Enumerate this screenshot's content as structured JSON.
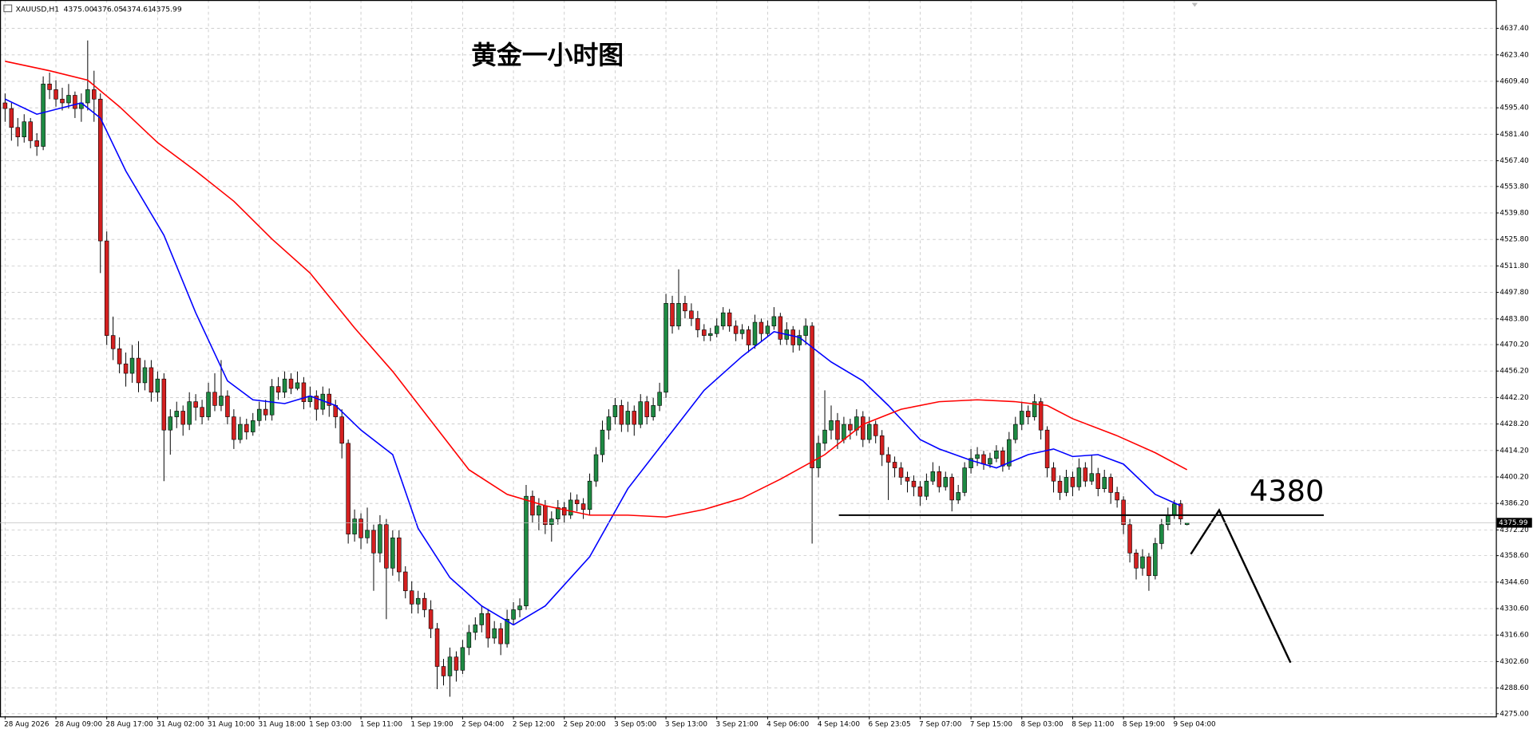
{
  "chart_data": {
    "type": "candlestick",
    "title": "黄金一小时图",
    "header": {
      "symbol": "XAUUSD,H1",
      "quote": [
        "4375.00",
        "4376.05",
        "4374.61",
        "4375.99"
      ]
    },
    "bull_color": "#1e8a43",
    "bear_color": "#d42020",
    "grid": true,
    "xlim": [
      -0.8,
      234.6
    ],
    "ylim": [
      4273.6,
      4652.4
    ],
    "xticks": [
      {
        "value": 0,
        "label": "28 Aug 2026"
      },
      {
        "value": 8,
        "label": "28 Aug 09:00"
      },
      {
        "value": 16,
        "label": "28 Aug 17:00"
      },
      {
        "value": 24,
        "label": "31 Aug 02:00"
      },
      {
        "value": 32,
        "label": "31 Aug 10:00"
      },
      {
        "value": 40,
        "label": "31 Aug 18:00"
      },
      {
        "value": 48,
        "label": "1 Sep 03:00"
      },
      {
        "value": 56,
        "label": "1 Sep 11:00"
      },
      {
        "value": 64,
        "label": "1 Sep 19:00"
      },
      {
        "value": 72,
        "label": "2 Sep 04:00"
      },
      {
        "value": 80,
        "label": "2 Sep 12:00"
      },
      {
        "value": 88,
        "label": "2 Sep 20:00"
      },
      {
        "value": 96,
        "label": "3 Sep 05:00"
      },
      {
        "value": 104,
        "label": "3 Sep 13:00"
      },
      {
        "value": 112,
        "label": "3 Sep 21:00"
      },
      {
        "value": 120,
        "label": "4 Sep 06:00"
      },
      {
        "value": 128,
        "label": "4 Sep 14:00"
      },
      {
        "value": 136,
        "label": "6 Sep 23:05"
      },
      {
        "value": 144,
        "label": "7 Sep 07:00"
      },
      {
        "value": 152,
        "label": "7 Sep 15:00"
      },
      {
        "value": 160,
        "label": "8 Sep 03:00"
      },
      {
        "value": 168,
        "label": "8 Sep 11:00"
      },
      {
        "value": 176,
        "label": "8 Sep 19:00"
      },
      {
        "value": 184,
        "label": "9 Sep 04:00"
      }
    ],
    "yticks": [
      {
        "value": 4637.4,
        "label": "4637.40"
      },
      {
        "value": 4623.4,
        "label": "4623.40"
      },
      {
        "value": 4609.4,
        "label": "4609.40"
      },
      {
        "value": 4595.4,
        "label": "4595.40"
      },
      {
        "value": 4581.4,
        "label": "4581.40"
      },
      {
        "value": 4567.4,
        "label": "4567.40"
      },
      {
        "value": 4553.8,
        "label": "4553.80"
      },
      {
        "value": 4539.8,
        "label": "4539.80"
      },
      {
        "value": 4525.8,
        "label": "4525.80"
      },
      {
        "value": 4511.8,
        "label": "4511.80"
      },
      {
        "value": 4497.8,
        "label": "4497.80"
      },
      {
        "value": 4483.8,
        "label": "4483.80"
      },
      {
        "value": 4470.2,
        "label": "4470.20"
      },
      {
        "value": 4456.2,
        "label": "4456.20"
      },
      {
        "value": 4442.2,
        "label": "4442.20"
      },
      {
        "value": 4428.2,
        "label": "4428.20"
      },
      {
        "value": 4414.2,
        "label": "4414.20"
      },
      {
        "value": 4400.2,
        "label": "4400.20"
      },
      {
        "value": 4386.2,
        "label": "4386.20"
      },
      {
        "value": 4372.2,
        "label": "4372.20"
      },
      {
        "value": 4358.6,
        "label": "4358.60"
      },
      {
        "value": 4344.6,
        "label": "4344.60"
      },
      {
        "value": 4330.6,
        "label": "4330.60"
      },
      {
        "value": 4316.6,
        "label": "4316.60"
      },
      {
        "value": 4302.6,
        "label": "4302.60"
      },
      {
        "value": 4288.6,
        "label": "4288.60"
      },
      {
        "value": 4275.0,
        "label": "4275.00"
      }
    ],
    "level": 4380,
    "candles": [
      [
        4598,
        4603,
        4588,
        4595
      ],
      [
        4595,
        4598,
        4578,
        4585
      ],
      [
        4585,
        4590,
        4575,
        4580
      ],
      [
        4580,
        4592,
        4577,
        4588
      ],
      [
        4588,
        4590,
        4574,
        4578
      ],
      [
        4578,
        4582,
        4570,
        4575
      ],
      [
        4575,
        4612,
        4573,
        4608
      ],
      [
        4608,
        4614,
        4600,
        4605
      ],
      [
        4605,
        4610,
        4596,
        4600
      ],
      [
        4600,
        4606,
        4594,
        4598
      ],
      [
        4598,
        4608,
        4595,
        4602
      ],
      [
        4602,
        4604,
        4590,
        4595
      ],
      [
        4595,
        4603,
        4588,
        4598
      ],
      [
        4598,
        4631,
        4594,
        4605
      ],
      [
        4605,
        4615,
        4588,
        4600
      ],
      [
        4600,
        4603,
        4508,
        4525
      ],
      [
        4525,
        4530,
        4470,
        4475
      ],
      [
        4475,
        4485,
        4462,
        4468
      ],
      [
        4468,
        4474,
        4455,
        4460
      ],
      [
        4460,
        4466,
        4448,
        4455
      ],
      [
        4455,
        4470,
        4450,
        4463
      ],
      [
        4463,
        4472,
        4445,
        4450
      ],
      [
        4450,
        4462,
        4446,
        4458
      ],
      [
        4458,
        4462,
        4440,
        4445
      ],
      [
        4445,
        4456,
        4440,
        4452
      ],
      [
        4452,
        4455,
        4398,
        4425
      ],
      [
        4425,
        4436,
        4412,
        4432
      ],
      [
        4432,
        4440,
        4426,
        4435
      ],
      [
        4435,
        4438,
        4422,
        4428
      ],
      [
        4428,
        4445,
        4425,
        4440
      ],
      [
        4440,
        4444,
        4430,
        4437
      ],
      [
        4437,
        4441,
        4428,
        4432
      ],
      [
        4432,
        4450,
        4430,
        4445
      ],
      [
        4445,
        4455,
        4435,
        4438
      ],
      [
        4438,
        4462,
        4435,
        4443
      ],
      [
        4443,
        4446,
        4428,
        4432
      ],
      [
        4432,
        4436,
        4415,
        4420
      ],
      [
        4420,
        4432,
        4418,
        4428
      ],
      [
        4428,
        4431,
        4420,
        4424
      ],
      [
        4424,
        4434,
        4422,
        4430
      ],
      [
        4430,
        4440,
        4427,
        4436
      ],
      [
        4436,
        4441,
        4430,
        4433
      ],
      [
        4433,
        4452,
        4430,
        4448
      ],
      [
        4448,
        4453,
        4441,
        4445
      ],
      [
        4445,
        4456,
        4442,
        4452
      ],
      [
        4452,
        4455,
        4444,
        4447
      ],
      [
        4447,
        4456,
        4446,
        4450
      ],
      [
        4450,
        4453,
        4436,
        4440
      ],
      [
        4440,
        4448,
        4437,
        4443
      ],
      [
        4443,
        4446,
        4430,
        4436
      ],
      [
        4436,
        4448,
        4433,
        4444
      ],
      [
        4444,
        4447,
        4432,
        4438
      ],
      [
        4438,
        4441,
        4426,
        4432
      ],
      [
        4432,
        4436,
        4410,
        4418
      ],
      [
        4418,
        4420,
        4365,
        4370
      ],
      [
        4370,
        4383,
        4366,
        4378
      ],
      [
        4378,
        4381,
        4362,
        4368
      ],
      [
        4368,
        4384,
        4365,
        4372
      ],
      [
        4372,
        4375,
        4340,
        4360
      ],
      [
        4360,
        4380,
        4355,
        4375
      ],
      [
        4375,
        4378,
        4325,
        4352
      ],
      [
        4352,
        4372,
        4348,
        4368
      ],
      [
        4368,
        4372,
        4345,
        4350
      ],
      [
        4350,
        4353,
        4336,
        4340
      ],
      [
        4340,
        4345,
        4328,
        4333
      ],
      [
        4333,
        4340,
        4328,
        4336
      ],
      [
        4336,
        4339,
        4326,
        4330
      ],
      [
        4330,
        4335,
        4315,
        4320
      ],
      [
        4320,
        4323,
        4288,
        4300
      ],
      [
        4300,
        4304,
        4290,
        4295
      ],
      [
        4295,
        4310,
        4284,
        4305
      ],
      [
        4305,
        4308,
        4292,
        4298
      ],
      [
        4298,
        4314,
        4296,
        4310
      ],
      [
        4310,
        4322,
        4306,
        4318
      ],
      [
        4318,
        4326,
        4314,
        4322
      ],
      [
        4322,
        4332,
        4318,
        4328
      ],
      [
        4328,
        4330,
        4310,
        4315
      ],
      [
        4315,
        4324,
        4312,
        4320
      ],
      [
        4320,
        4323,
        4306,
        4312
      ],
      [
        4312,
        4330,
        4310,
        4325
      ],
      [
        4325,
        4334,
        4322,
        4330
      ],
      [
        4330,
        4336,
        4326,
        4332
      ],
      [
        4332,
        4396,
        4330,
        4390
      ],
      [
        4390,
        4393,
        4376,
        4380
      ],
      [
        4380,
        4389,
        4372,
        4385
      ],
      [
        4385,
        4388,
        4370,
        4375
      ],
      [
        4375,
        4382,
        4366,
        4378
      ],
      [
        4378,
        4388,
        4375,
        4384
      ],
      [
        4384,
        4387,
        4376,
        4380
      ],
      [
        4380,
        4392,
        4378,
        4388
      ],
      [
        4388,
        4391,
        4382,
        4386
      ],
      [
        4386,
        4389,
        4378,
        4383
      ],
      [
        4383,
        4402,
        4380,
        4398
      ],
      [
        4398,
        4416,
        4395,
        4412
      ],
      [
        4412,
        4430,
        4408,
        4425
      ],
      [
        4425,
        4436,
        4420,
        4432
      ],
      [
        4432,
        4442,
        4428,
        4438
      ],
      [
        4438,
        4441,
        4424,
        4428
      ],
      [
        4428,
        4440,
        4424,
        4435
      ],
      [
        4435,
        4438,
        4422,
        4428
      ],
      [
        4428,
        4444,
        4426,
        4440
      ],
      [
        4440,
        4443,
        4428,
        4432
      ],
      [
        4432,
        4442,
        4430,
        4438
      ],
      [
        4438,
        4450,
        4435,
        4445
      ],
      [
        4445,
        4497,
        4442,
        4492
      ],
      [
        4492,
        4496,
        4476,
        4480
      ],
      [
        4480,
        4510,
        4478,
        4492
      ],
      [
        4492,
        4496,
        4484,
        4488
      ],
      [
        4488,
        4492,
        4480,
        4484
      ],
      [
        4484,
        4488,
        4474,
        4478
      ],
      [
        4478,
        4481,
        4472,
        4475
      ],
      [
        4475,
        4479,
        4472,
        4476
      ],
      [
        4476,
        4484,
        4474,
        4480
      ],
      [
        4480,
        4490,
        4478,
        4487
      ],
      [
        4487,
        4489,
        4477,
        4480
      ],
      [
        4480,
        4483,
        4472,
        4476
      ],
      [
        4476,
        4481,
        4473,
        4478
      ],
      [
        4478,
        4480,
        4466,
        4470
      ],
      [
        4470,
        4486,
        4468,
        4482
      ],
      [
        4482,
        4484,
        4472,
        4476
      ],
      [
        4476,
        4483,
        4474,
        4480
      ],
      [
        4480,
        4490,
        4478,
        4485
      ],
      [
        4485,
        4487,
        4470,
        4473
      ],
      [
        4473,
        4482,
        4470,
        4478
      ],
      [
        4478,
        4480,
        4466,
        4470
      ],
      [
        4470,
        4478,
        4467,
        4475
      ],
      [
        4475,
        4484,
        4470,
        4480
      ],
      [
        4480,
        4482,
        4365,
        4405
      ],
      [
        4405,
        4422,
        4400,
        4418
      ],
      [
        4418,
        4446,
        4414,
        4425
      ],
      [
        4425,
        4438,
        4420,
        4430
      ],
      [
        4430,
        4434,
        4415,
        4420
      ],
      [
        4420,
        4432,
        4418,
        4428
      ],
      [
        4428,
        4431,
        4420,
        4425
      ],
      [
        4425,
        4436,
        4422,
        4432
      ],
      [
        4432,
        4435,
        4416,
        4420
      ],
      [
        4420,
        4432,
        4418,
        4428
      ],
      [
        4428,
        4430,
        4418,
        4422
      ],
      [
        4422,
        4425,
        4406,
        4412
      ],
      [
        4412,
        4416,
        4388,
        4408
      ],
      [
        4408,
        4411,
        4400,
        4405
      ],
      [
        4405,
        4408,
        4396,
        4400
      ],
      [
        4400,
        4403,
        4392,
        4398
      ],
      [
        4398,
        4401,
        4390,
        4395
      ],
      [
        4395,
        4398,
        4385,
        4390
      ],
      [
        4390,
        4402,
        4388,
        4398
      ],
      [
        4398,
        4408,
        4396,
        4403
      ],
      [
        4403,
        4406,
        4392,
        4395
      ],
      [
        4395,
        4403,
        4393,
        4400
      ],
      [
        4400,
        4402,
        4382,
        4388
      ],
      [
        4388,
        4396,
        4386,
        4392
      ],
      [
        4392,
        4408,
        4390,
        4405
      ],
      [
        4405,
        4415,
        4402,
        4410
      ],
      [
        4410,
        4416,
        4406,
        4412
      ],
      [
        4412,
        4414,
        4404,
        4407
      ],
      [
        4407,
        4413,
        4405,
        4410
      ],
      [
        4410,
        4417,
        4408,
        4414
      ],
      [
        4414,
        4416,
        4403,
        4406
      ],
      [
        4406,
        4424,
        4404,
        4420
      ],
      [
        4420,
        4432,
        4418,
        4428
      ],
      [
        4428,
        4440,
        4425,
        4435
      ],
      [
        4435,
        4438,
        4428,
        4432
      ],
      [
        4432,
        4444,
        4430,
        4440
      ],
      [
        4440,
        4442,
        4420,
        4425
      ],
      [
        4425,
        4427,
        4400,
        4405
      ],
      [
        4405,
        4408,
        4392,
        4398
      ],
      [
        4398,
        4401,
        4388,
        4392
      ],
      [
        4392,
        4404,
        4390,
        4400
      ],
      [
        4400,
        4403,
        4390,
        4395
      ],
      [
        4395,
        4410,
        4393,
        4405
      ],
      [
        4405,
        4408,
        4395,
        4398
      ],
      [
        4398,
        4412,
        4396,
        4402
      ],
      [
        4402,
        4405,
        4390,
        4394
      ],
      [
        4394,
        4404,
        4392,
        4400
      ],
      [
        4400,
        4402,
        4386,
        4392
      ],
      [
        4392,
        4395,
        4384,
        4388
      ],
      [
        4388,
        4390,
        4370,
        4375
      ],
      [
        4375,
        4378,
        4355,
        4360
      ],
      [
        4360,
        4362,
        4346,
        4352
      ],
      [
        4352,
        4362,
        4348,
        4358
      ],
      [
        4358,
        4360,
        4340,
        4348
      ],
      [
        4348,
        4368,
        4346,
        4365
      ],
      [
        4365,
        4378,
        4362,
        4375
      ],
      [
        4375,
        4384,
        4372,
        4380
      ],
      [
        4380,
        4388,
        4378,
        4386
      ],
      [
        4386,
        4388,
        4375,
        4378
      ],
      [
        4375.0,
        4376.05,
        4374.61,
        4375.99
      ]
    ],
    "series": [
      {
        "color": "#0000ff",
        "x": [
          0,
          5,
          12,
          15,
          19,
          25,
          30,
          35,
          39,
          44,
          48,
          52,
          56,
          61,
          65,
          70,
          75,
          80,
          85,
          92,
          98,
          104,
          110,
          116,
          121,
          125,
          130,
          135,
          139,
          144,
          147,
          152,
          156,
          161,
          165,
          168,
          172,
          176,
          181,
          185
        ],
        "values": [
          4600,
          4592,
          4598,
          4590,
          4562,
          4528,
          4487,
          4451,
          4441,
          4439,
          4443,
          4438,
          4425,
          4412,
          4373,
          4347,
          4332,
          4322,
          4332,
          4358,
          4394,
          4420,
          4446,
          4464,
          4477,
          4474,
          4461,
          4451,
          4438,
          4420,
          4415,
          4409,
          4405,
          4412,
          4415,
          4411,
          4412,
          4407,
          4391,
          4385
        ]
      },
      {
        "color": "#ff0000",
        "x": [
          0,
          7,
          13,
          18,
          24,
          30,
          36,
          42,
          48,
          55,
          61,
          67,
          73,
          79,
          85,
          92,
          98,
          104,
          110,
          116,
          122,
          129,
          135,
          141,
          147,
          153,
          159,
          164,
          168,
          175,
          181,
          186
        ],
        "values": [
          4620,
          4615,
          4610,
          4596,
          4577,
          4562,
          4546,
          4526,
          4508,
          4479,
          4456,
          4430,
          4404,
          4391,
          4385,
          4380,
          4380,
          4379,
          4383,
          4389,
          4399,
          4412,
          4428,
          4436,
          4440,
          4441,
          4440,
          4438,
          4431,
          4422,
          4413,
          4404
        ]
      }
    ]
  }
}
